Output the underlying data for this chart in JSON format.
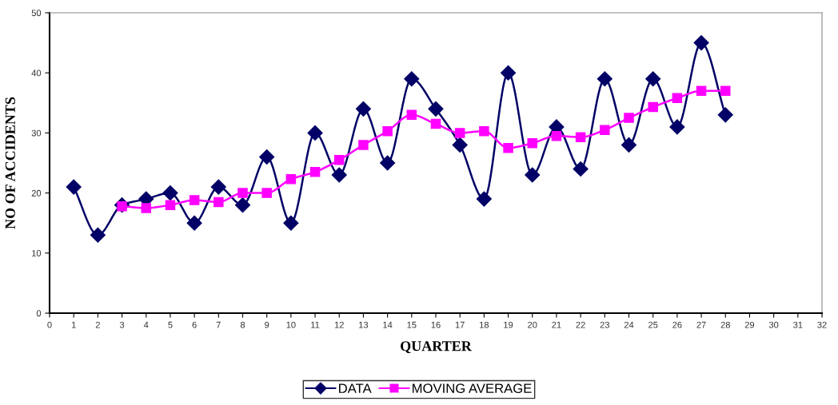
{
  "chart_data": {
    "type": "line",
    "xlabel": "QUARTER",
    "ylabel": "NO OF ACCIDENTS",
    "xlim": [
      0,
      32
    ],
    "xticks": [
      0,
      1,
      2,
      3,
      4,
      5,
      6,
      7,
      8,
      9,
      10,
      11,
      12,
      13,
      14,
      15,
      16,
      17,
      18,
      19,
      20,
      21,
      22,
      23,
      24,
      25,
      26,
      27,
      28,
      29,
      30,
      31,
      32
    ],
    "ylim": [
      0,
      50
    ],
    "yticks": [
      0,
      10,
      20,
      30,
      40,
      50
    ],
    "grid": false,
    "legend": "bottom",
    "line_style": "solid",
    "series": [
      {
        "name": "DATA",
        "color": "#000066",
        "marker": "diamond",
        "x": [
          1,
          2,
          3,
          4,
          5,
          6,
          7,
          8,
          9,
          10,
          11,
          12,
          13,
          14,
          15,
          16,
          17,
          18,
          19,
          20,
          21,
          22,
          23,
          24,
          25,
          26,
          27,
          28
        ],
        "values": [
          21,
          13,
          18,
          19,
          20,
          15,
          21,
          18,
          26,
          15,
          30,
          23,
          34,
          25,
          39,
          34,
          28,
          19,
          40,
          23,
          31,
          24,
          39,
          28,
          39,
          31,
          45,
          33
        ]
      },
      {
        "name": "MOVING AVERAGE",
        "color": "#ff00ff",
        "marker": "square",
        "x": [
          3,
          4,
          5,
          6,
          7,
          8,
          9,
          10,
          11,
          12,
          13,
          14,
          15,
          16,
          17,
          18,
          19,
          20,
          21,
          22,
          23,
          24,
          25,
          26,
          27,
          28
        ],
        "values": [
          17.8,
          17.5,
          18,
          18.8,
          18.5,
          20,
          20,
          22.3,
          23.5,
          25.5,
          28,
          30.3,
          33,
          31.5,
          30,
          30.3,
          27.5,
          28.3,
          29.5,
          29.3,
          30.5,
          32.5,
          34.3,
          35.8,
          37,
          37
        ]
      }
    ]
  }
}
